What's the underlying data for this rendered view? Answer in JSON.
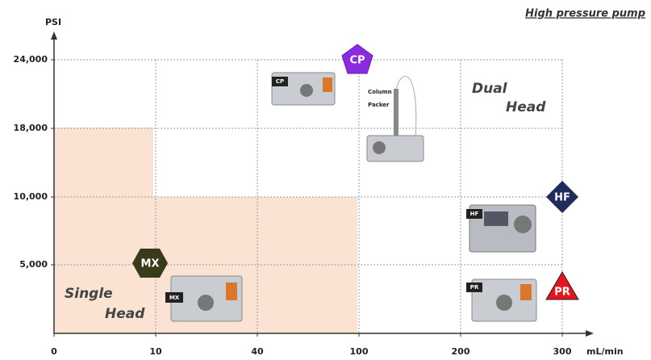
{
  "title": "High  pressure pump",
  "y_axis_label": "PSI",
  "x_axis_label": "mL/min",
  "x_ticks": [
    "0",
    "10",
    "40",
    "100",
    "200",
    "300"
  ],
  "y_ticks": [
    "5,000",
    "10,000",
    "18,000",
    "24,000"
  ],
  "regions": [
    {
      "lines": [
        "Single",
        "Head"
      ]
    },
    {
      "lines": [
        "Dual",
        "Head"
      ]
    }
  ],
  "markers": [
    "CP",
    "HF",
    "MX",
    "PR"
  ],
  "products": [
    "CP",
    "HF",
    "MX",
    "PR"
  ],
  "column_packer": [
    "Column",
    "Packer"
  ]
}
